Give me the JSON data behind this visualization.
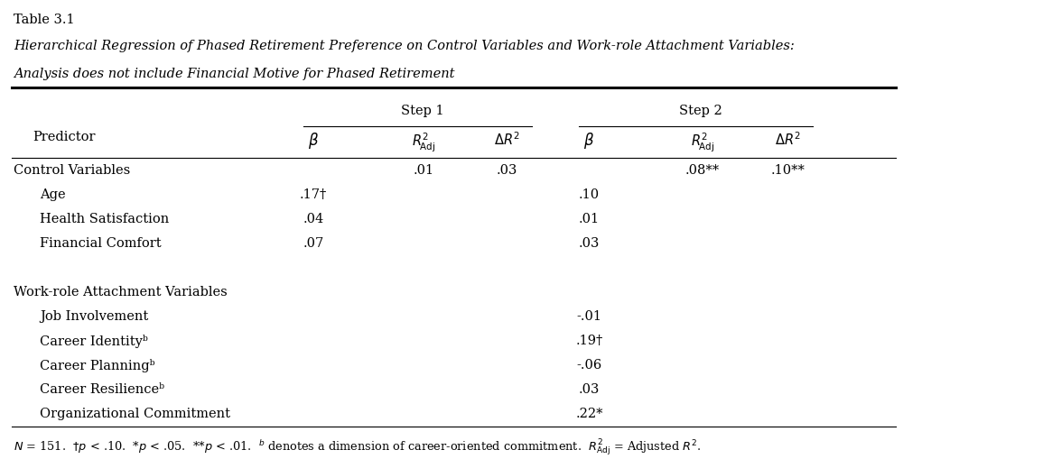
{
  "table_label": "Table 3.1",
  "title_line1": "Hierarchical Regression of Phased Retirement Preference on Control Variables and Work-role Attachment Variables:",
  "title_line2": "Analysis does not include Financial Motive for Phased Retirement",
  "step1_label": "Step 1",
  "step2_label": "Step 2",
  "rows": [
    {
      "label": "Control Variables",
      "indent": 0,
      "b1": "",
      "r1": ".01",
      "dr1": ".03",
      "b2": "",
      "r2": ".08**",
      "dr2": ".10**"
    },
    {
      "label": "Age",
      "indent": 1,
      "b1": ".17†",
      "r1": "",
      "dr1": "",
      "b2": ".10",
      "r2": "",
      "dr2": ""
    },
    {
      "label": "Health Satisfaction",
      "indent": 1,
      "b1": ".04",
      "r1": "",
      "dr1": "",
      "b2": ".01",
      "r2": "",
      "dr2": ""
    },
    {
      "label": "Financial Comfort",
      "indent": 1,
      "b1": ".07",
      "r1": "",
      "dr1": "",
      "b2": ".03",
      "r2": "",
      "dr2": ""
    },
    {
      "label": "",
      "indent": 0,
      "b1": "",
      "r1": "",
      "dr1": "",
      "b2": "",
      "r2": "",
      "dr2": ""
    },
    {
      "label": "Work-role Attachment Variables",
      "indent": 0,
      "b1": "",
      "r1": "",
      "dr1": "",
      "b2": "",
      "r2": "",
      "dr2": ""
    },
    {
      "label": "Job Involvement",
      "indent": 1,
      "b1": "",
      "r1": "",
      "dr1": "",
      "b2": "-.01",
      "r2": "",
      "dr2": ""
    },
    {
      "label": "Career Identityᵇ",
      "indent": 1,
      "b1": "",
      "r1": "",
      "dr1": "",
      "b2": ".19†",
      "r2": "",
      "dr2": ""
    },
    {
      "label": "Career Planningᵇ",
      "indent": 1,
      "b1": "",
      "r1": "",
      "dr1": "",
      "b2": "-.06",
      "r2": "",
      "dr2": ""
    },
    {
      "label": "Career Resilienceᵇ",
      "indent": 1,
      "b1": "",
      "r1": "",
      "dr1": "",
      "b2": ".03",
      "r2": "",
      "dr2": ""
    },
    {
      "label": "Organizational Commitment",
      "indent": 1,
      "b1": "",
      "r1": "",
      "dr1": "",
      "b2": ".22*",
      "r2": "",
      "dr2": ""
    }
  ],
  "bg_color": "#ffffff",
  "text_color": "#000000",
  "font_size": 10.5
}
